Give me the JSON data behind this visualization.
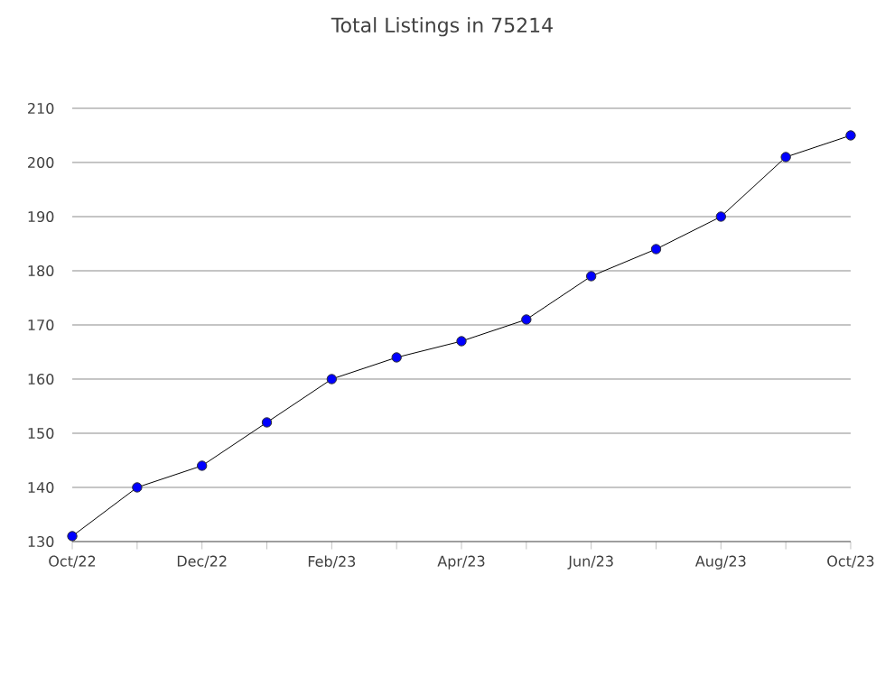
{
  "chart_data": {
    "type": "line",
    "title": "Total Listings in 75214",
    "categories": [
      "Oct/22",
      null,
      "Dec/22",
      null,
      "Feb/23",
      null,
      "Apr/23",
      null,
      "Jun/23",
      null,
      "Aug/23",
      null,
      "Oct/23"
    ],
    "values": [
      131,
      140,
      144,
      152,
      160,
      164,
      167,
      171,
      179,
      184,
      190,
      201,
      205
    ],
    "color": "#0000ff",
    "marker": "circle",
    "grid": "y",
    "ylim": [
      130,
      210
    ],
    "yticks": [
      130,
      140,
      150,
      160,
      170,
      180,
      190,
      200,
      210
    ]
  }
}
